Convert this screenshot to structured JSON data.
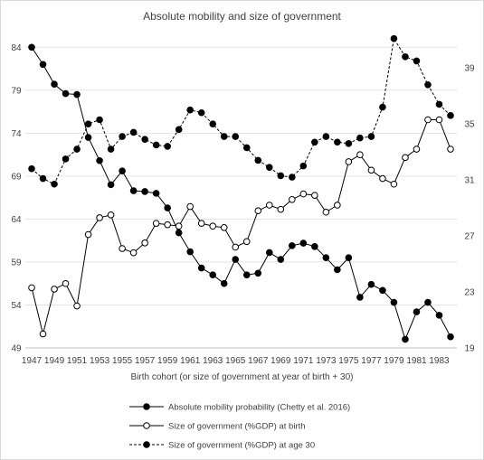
{
  "chart_data": {
    "type": "line",
    "title": "Absolute mobility and size of government",
    "xlabel": "Birth cohort (or size of government at year of birth + 30)",
    "x": [
      1947,
      1948,
      1949,
      1950,
      1951,
      1952,
      1953,
      1954,
      1955,
      1956,
      1957,
      1958,
      1959,
      1960,
      1961,
      1962,
      1963,
      1964,
      1965,
      1966,
      1967,
      1968,
      1969,
      1970,
      1971,
      1972,
      1973,
      1974,
      1975,
      1976,
      1977,
      1978,
      1979,
      1980,
      1981,
      1982,
      1983,
      1984
    ],
    "x_tick_labels": [
      "1947",
      "1949",
      "1951",
      "1953",
      "1955",
      "1957",
      "1959",
      "1961",
      "1963",
      "1965",
      "1967",
      "1969",
      "1971",
      "1973",
      "1975",
      "1977",
      "1979",
      "1981",
      "1983"
    ],
    "y_left": {
      "ticks": [
        "49",
        "54",
        "59",
        "64",
        "69",
        "74",
        "79",
        "84"
      ],
      "ylim": [
        49,
        85.5
      ]
    },
    "y_right": {
      "ticks": [
        "19",
        "23",
        "27",
        "31",
        "35",
        "39"
      ],
      "ylim": [
        19,
        41.4
      ]
    },
    "series": [
      {
        "name": "Absolute mobility probability (Chetty et al. 2016)",
        "axis": "left",
        "marker": "filled",
        "line": "solid",
        "values": [
          84,
          82,
          79.7,
          78.6,
          78.5,
          73.5,
          70.8,
          68,
          69.6,
          67.3,
          67.2,
          67,
          65.3,
          62.4,
          60.2,
          58.3,
          57.5,
          56.5,
          59.3,
          57.5,
          57.7,
          60.1,
          59.3,
          60.9,
          61.2,
          60.8,
          59.5,
          58.1,
          59.5,
          54.9,
          56.4,
          55.7,
          54.3,
          50,
          53.2,
          54.3,
          52.8,
          50.3
        ]
      },
      {
        "name": "Size of government (%GDP) at birth",
        "axis": "right",
        "marker": "open",
        "line": "solid",
        "values": [
          23.3,
          20,
          23.2,
          23.6,
          22,
          27.1,
          28.3,
          28.5,
          26.1,
          25.8,
          26.5,
          27.9,
          27.8,
          27.7,
          29.1,
          27.9,
          27.7,
          27.6,
          26.2,
          26.6,
          28.8,
          29.2,
          28.9,
          29.6,
          30,
          29.9,
          28.7,
          29.2,
          32.3,
          32.8,
          31.7,
          31.1,
          30.7,
          32.6,
          33.2,
          35.3,
          35.3,
          33.2
        ]
      },
      {
        "name": "Size of government (%GDP) at age 30",
        "axis": "right",
        "marker": "filled",
        "line": "dashed",
        "values": [
          31.8,
          31.1,
          30.7,
          32.5,
          33.2,
          35,
          35.3,
          33.2,
          34.1,
          34.4,
          33.9,
          33.5,
          33.4,
          34.6,
          36,
          35.8,
          35,
          34.1,
          34.1,
          33.3,
          32.4,
          31.9,
          31.3,
          31.2,
          32,
          33.7,
          34.1,
          33.7,
          33.6,
          34,
          34.1,
          36.2,
          41.1,
          39.8,
          39.5,
          37.8,
          36.4,
          35.6
        ]
      }
    ],
    "legend_position": "bottom",
    "grid": "horizontal"
  }
}
